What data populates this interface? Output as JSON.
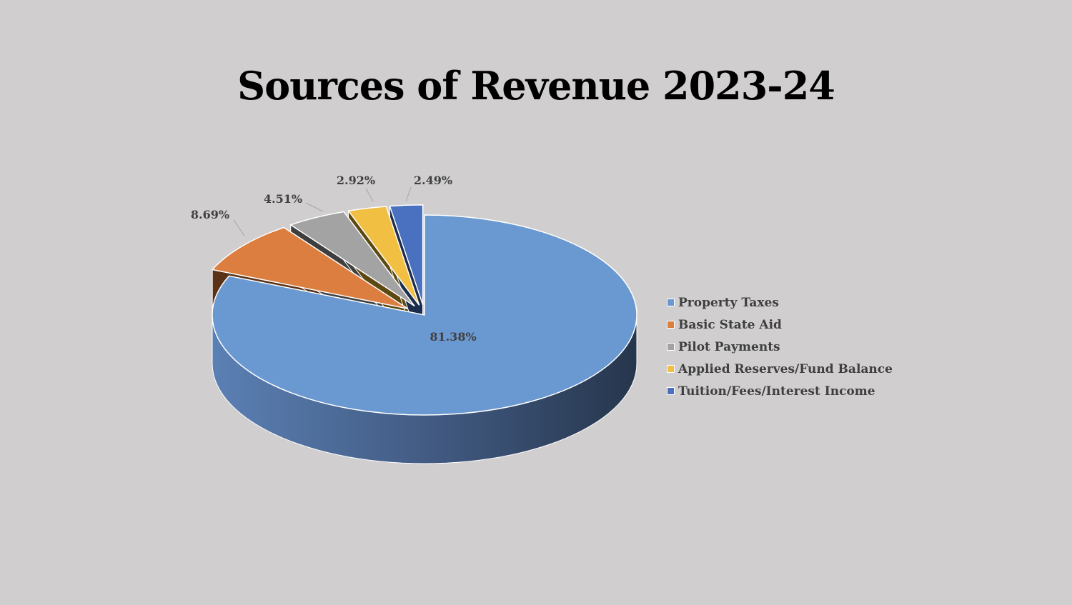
{
  "chart_data": {
    "type": "pie",
    "title": "Sources of Revenue 2023-24",
    "legend_position": "right",
    "slices": [
      {
        "name": "Property Taxes",
        "value": 81.38,
        "label": "81.38%",
        "color": "#6a98d0",
        "side_dark": "#2a3b52",
        "side_light": "#5b80b4"
      },
      {
        "name": "Basic State Aid",
        "value": 8.69,
        "label": "8.69%",
        "color": "#dc7e3f",
        "side_dark": "#5a3217",
        "side_light": "#7a4420"
      },
      {
        "name": "Pilot Payments",
        "value": 4.51,
        "label": "4.51%",
        "color": "#a3a3a3",
        "side_dark": "#3e3e3e",
        "side_light": "#555555"
      },
      {
        "name": "Applied Reserves/Fund Balance",
        "value": 2.92,
        "label": "2.92%",
        "color": "#f1bf41",
        "side_dark": "#5c4810",
        "side_light": "#7a5f16"
      },
      {
        "name": "Tuition/Fees/Interest Income",
        "value": 2.49,
        "label": "2.49%",
        "color": "#4a71c0",
        "side_dark": "#1c2c4c",
        "side_light": "#263a63"
      }
    ]
  }
}
